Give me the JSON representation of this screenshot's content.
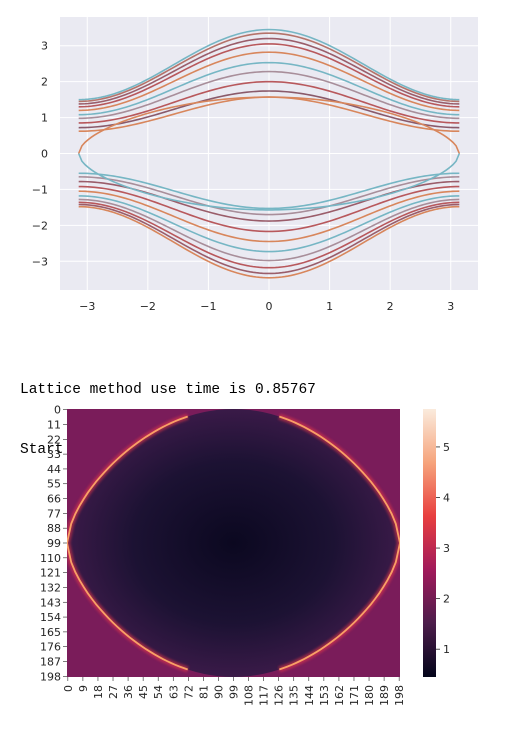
{
  "chart_data": [
    {
      "type": "line",
      "title": "",
      "xlabel": "",
      "ylabel": "",
      "xlim": [
        -3.45,
        3.45
      ],
      "ylim": [
        -3.8,
        3.8
      ],
      "x_ticks": [
        "−3",
        "−2",
        "−1",
        "0",
        "1",
        "2",
        "3"
      ],
      "y_ticks": [
        "3",
        "2",
        "1",
        "0",
        "−1",
        "−2",
        "−3"
      ],
      "grid": true,
      "background": "#eaeaf2",
      "series_model": "y(k) = ±(a + b·(1 + cos k)/2) for k in [−π, π]; edge-state pair crosses zero",
      "bands_upper": [
        {
          "a": 1.5,
          "b": 1.95,
          "color": "#76b6c4"
        },
        {
          "a": 1.45,
          "b": 1.9,
          "color": "#b5736a"
        },
        {
          "a": 1.38,
          "b": 1.82,
          "color": "#9a5d6a"
        },
        {
          "a": 1.3,
          "b": 1.75,
          "color": "#b8585c"
        },
        {
          "a": 1.2,
          "b": 1.62,
          "color": "#d8865c"
        },
        {
          "a": 1.08,
          "b": 1.45,
          "color": "#76b6c4"
        },
        {
          "a": 0.98,
          "b": 1.3,
          "color": "#a88e9a"
        },
        {
          "a": 0.85,
          "b": 1.15,
          "color": "#b8585c"
        },
        {
          "a": 0.72,
          "b": 1.02,
          "color": "#8a5a6a"
        },
        {
          "a": 0.62,
          "b": 0.95,
          "color": "#d8865c"
        }
      ],
      "bands_lower": [
        {
          "a": -0.55,
          "b": -0.98,
          "color": "#76b6c4"
        },
        {
          "a": -0.65,
          "b": -1.05,
          "color": "#a88e9a"
        },
        {
          "a": -0.78,
          "b": -1.1,
          "color": "#9a5d6a"
        },
        {
          "a": -0.92,
          "b": -1.25,
          "color": "#b8585c"
        },
        {
          "a": -1.05,
          "b": -1.4,
          "color": "#d8865c"
        },
        {
          "a": -1.18,
          "b": -1.55,
          "color": "#76b6c4"
        },
        {
          "a": -1.28,
          "b": -1.7,
          "color": "#a88e9a"
        },
        {
          "a": -1.36,
          "b": -1.82,
          "color": "#b8585c"
        },
        {
          "a": -1.42,
          "b": -1.92,
          "color": "#9a5d6a"
        },
        {
          "a": -1.48,
          "b": -1.98,
          "color": "#d8865c"
        }
      ],
      "edge_states": [
        {
          "sign": 1,
          "color": "#d8865c"
        },
        {
          "sign": -1,
          "color": "#76b6c4"
        }
      ]
    },
    {
      "type": "heatmap",
      "title": "",
      "xlabel": "",
      "ylabel": "",
      "size": [
        199,
        199
      ],
      "x_ticks": [
        "0",
        "9",
        "18",
        "27",
        "36",
        "45",
        "54",
        "63",
        "72",
        "81",
        "90",
        "99",
        "108",
        "117",
        "126",
        "135",
        "144",
        "153",
        "162",
        "171",
        "180",
        "189",
        "198"
      ],
      "y_ticks": [
        "0",
        "11",
        "22",
        "33",
        "44",
        "55",
        "66",
        "77",
        "88",
        "99",
        "110",
        "121",
        "132",
        "143",
        "154",
        "165",
        "176",
        "187",
        "198"
      ],
      "colorbar_ticks": [
        "5",
        "4",
        "3",
        "2",
        "1"
      ],
      "colorbar_range": [
        0.45,
        5.75
      ],
      "colormap": "rocket",
      "background_value": 2.05,
      "pattern": "dark lens-shaped region bounded by two bright arcs meeting at left and right edges (row 99)"
    }
  ],
  "log": {
    "line1": "Lattice method use time is 0.85767",
    "line2": "Start with Iteration method"
  }
}
